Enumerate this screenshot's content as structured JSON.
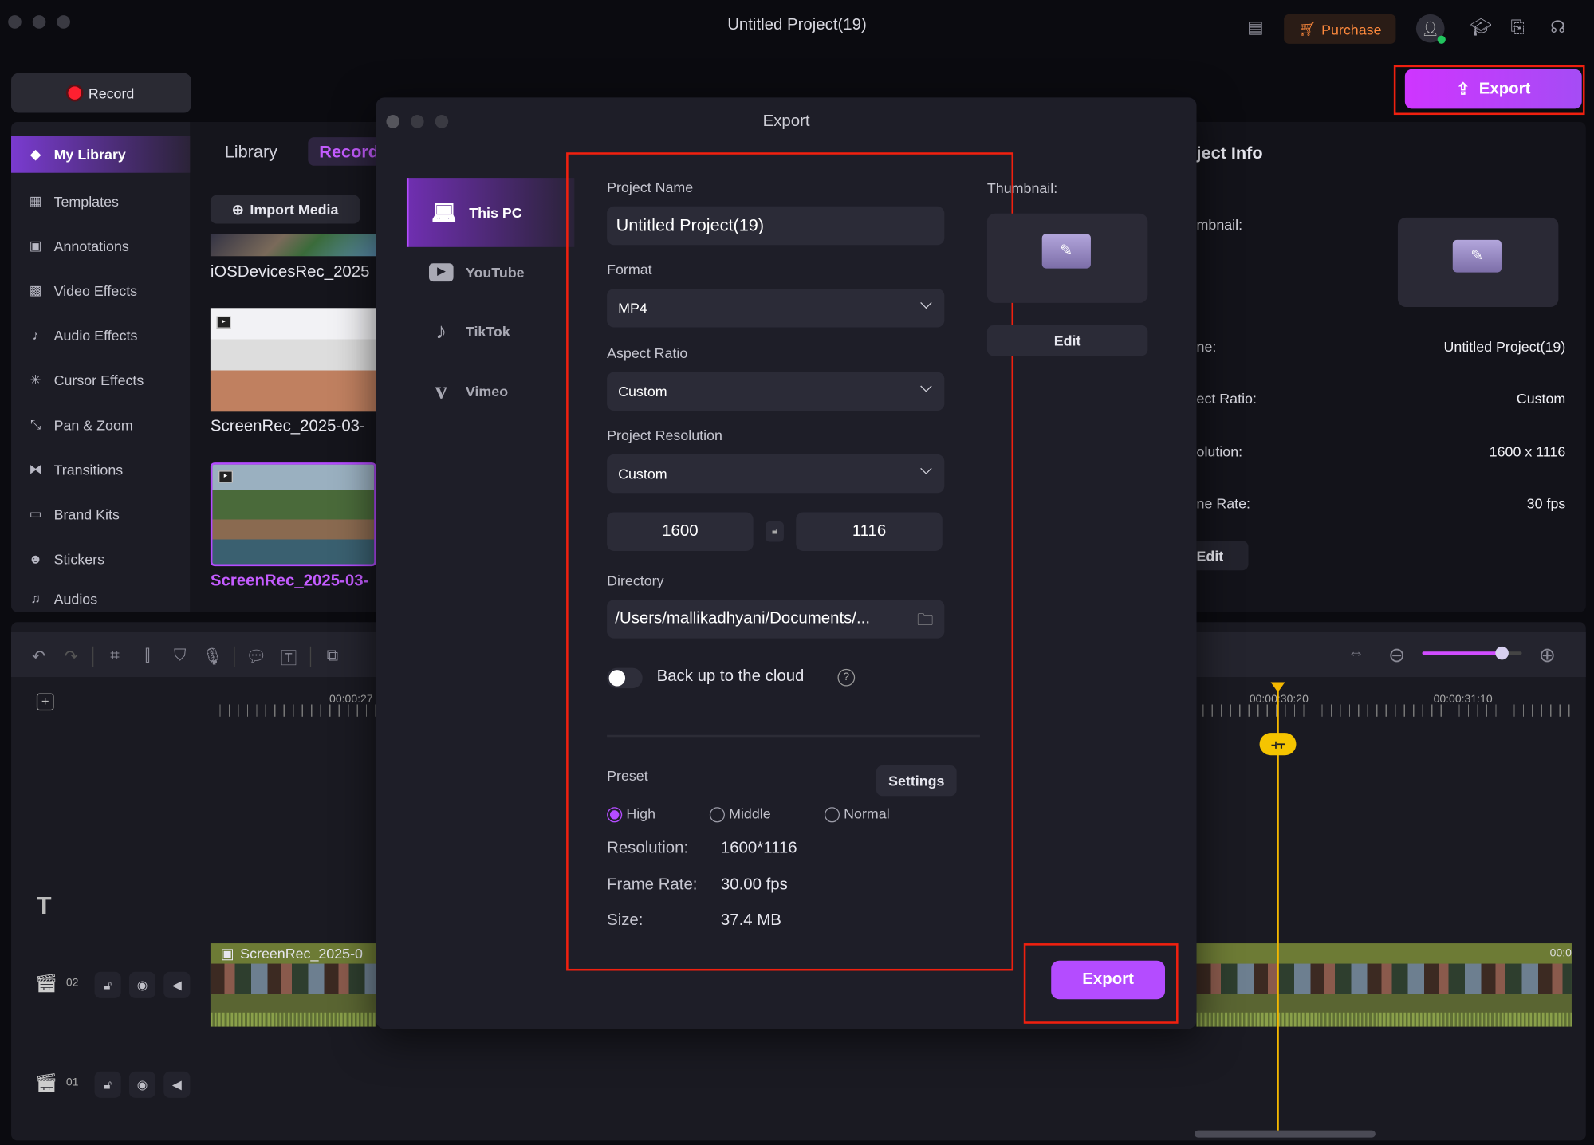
{
  "window": {
    "title": "Untitled Project(19)"
  },
  "topbar": {
    "purchase_label": "Purchase",
    "export_label": "Export",
    "icons": [
      "notes-icon",
      "cart-icon",
      "user-avatar-icon",
      "graduation-cap-icon",
      "feedback-icon",
      "support-headset-icon",
      "upload-icon"
    ]
  },
  "record_label": "Record",
  "sidebar": {
    "items": [
      {
        "label": "My Library",
        "icon": "library-icon",
        "selected": true
      },
      {
        "label": "Templates",
        "icon": "templates-icon"
      },
      {
        "label": "Annotations",
        "icon": "annotations-icon"
      },
      {
        "label": "Video Effects",
        "icon": "video-effects-icon"
      },
      {
        "label": "Audio Effects",
        "icon": "audio-effects-icon"
      },
      {
        "label": "Cursor Effects",
        "icon": "cursor-effects-icon"
      },
      {
        "label": "Pan & Zoom",
        "icon": "pan-zoom-icon"
      },
      {
        "label": "Transitions",
        "icon": "transitions-icon"
      },
      {
        "label": "Brand Kits",
        "icon": "brand-kits-icon"
      },
      {
        "label": "Stickers",
        "icon": "stickers-icon"
      },
      {
        "label": "Audios",
        "icon": "audios-icon"
      }
    ]
  },
  "media": {
    "tabs": [
      "Library",
      "Record"
    ],
    "import_label": "Import Media",
    "items": [
      "iOSDevicesRec_2025",
      "ScreenRec_2025-03-",
      "ScreenRec_2025-03-"
    ]
  },
  "project_info": {
    "title": "ject Info",
    "thumbnail_label": "mbnail:",
    "rows": [
      {
        "label": "ne:",
        "value": "Untitled Project(19)"
      },
      {
        "label": "ect Ratio:",
        "value": "Custom"
      },
      {
        "label": "olution:",
        "value": "1600 x 1116"
      },
      {
        "label": "ne Rate:",
        "value": "30 fps"
      }
    ],
    "edit_label": "Edit"
  },
  "dialog": {
    "title": "Export",
    "nav": [
      {
        "label": "This PC",
        "icon": "laptop-icon",
        "selected": true
      },
      {
        "label": "YouTube",
        "icon": "youtube-icon"
      },
      {
        "label": "TikTok",
        "icon": "tiktok-icon"
      },
      {
        "label": "Vimeo",
        "icon": "vimeo-icon"
      }
    ],
    "project_name_label": "Project Name",
    "project_name": "Untitled Project(19)",
    "format_label": "Format",
    "format": "MP4",
    "aspect_label": "Aspect Ratio",
    "aspect": "Custom",
    "resolution_label": "Project Resolution",
    "resolution": "Custom",
    "width": "1600",
    "height": "1116",
    "directory_label": "Directory",
    "directory": "/Users/mallikadhyani/Documents/...",
    "cloud_label": "Back up to the cloud",
    "cloud_on": false,
    "thumbnail_label": "Thumbnail:",
    "edit_label": "Edit",
    "preset_label": "Preset",
    "settings_label": "Settings",
    "presets": [
      "High",
      "Middle",
      "Normal"
    ],
    "preset_selected": "High",
    "summary": [
      {
        "label": "Resolution:",
        "value": "1600*1116"
      },
      {
        "label": "Frame Rate:",
        "value": "30.00 fps"
      },
      {
        "label": "Size:",
        "value": "37.4 MB"
      }
    ],
    "export_label": "Export"
  },
  "timeline": {
    "ticks": [
      "00:00:27",
      "00:00:30:20",
      "00:00:31:10"
    ],
    "tracks": [
      {
        "num": "02",
        "clip": "ScreenRec_2025-0",
        "clip_end": "00:0"
      },
      {
        "num": "01"
      }
    ],
    "zoom_level": 0.78,
    "accent": "#f5b800"
  },
  "colors": {
    "accent": "#b44cff",
    "highlight_box": "#f0200f",
    "purchase": "#ff8a3d"
  }
}
